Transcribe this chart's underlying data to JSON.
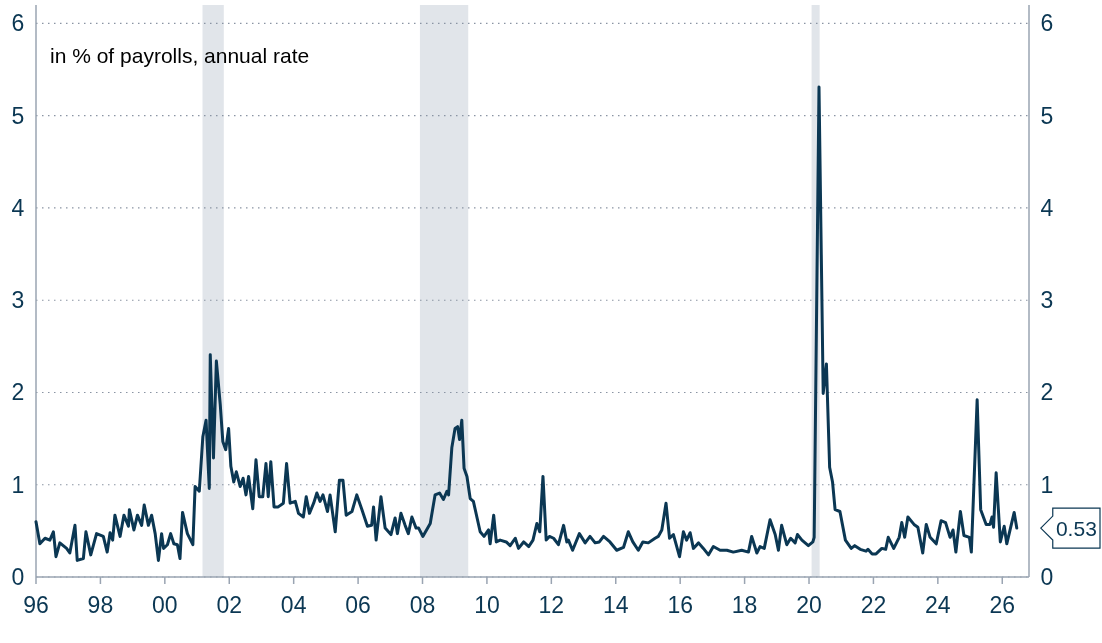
{
  "chart_data": {
    "type": "line",
    "annotations": [
      "in % of payrolls, annual rate",
      {
        "text": "0.53",
        "x": 2026.45,
        "y": 0.53
      }
    ],
    "x": [
      1996.0,
      1996.12,
      1996.28,
      1996.43,
      1996.54,
      1996.62,
      1996.74,
      1996.95,
      1997.05,
      1997.21,
      1997.28,
      1997.47,
      1997.55,
      1997.7,
      1997.88,
      1998.09,
      1998.21,
      1998.3,
      1998.38,
      1998.45,
      1998.61,
      1998.73,
      1998.87,
      1998.9,
      1999.04,
      1999.15,
      1999.28,
      1999.36,
      1999.49,
      1999.59,
      1999.7,
      1999.8,
      1999.9,
      1999.96,
      2000.08,
      2000.18,
      2000.28,
      2000.39,
      2000.47,
      2000.55,
      2000.7,
      2000.87,
      2000.94,
      2001.07,
      2001.18,
      2001.28,
      2001.38,
      2001.41,
      2001.51,
      2001.6,
      2001.72,
      2001.8,
      2001.89,
      2001.98,
      2002.05,
      2002.14,
      2002.22,
      2002.34,
      2002.43,
      2002.52,
      2002.6,
      2002.73,
      2002.83,
      2002.93,
      2003.04,
      2003.14,
      2003.21,
      2003.29,
      2003.39,
      2003.52,
      2003.68,
      2003.78,
      2003.89,
      2004.05,
      2004.15,
      2004.3,
      2004.39,
      2004.49,
      2004.62,
      2004.72,
      2004.82,
      2004.91,
      2005.05,
      2005.13,
      2005.29,
      2005.42,
      2005.53,
      2005.63,
      2005.81,
      2005.96,
      2006.12,
      2006.29,
      2006.42,
      2006.48,
      2006.56,
      2006.71,
      2006.84,
      2007.02,
      2007.15,
      2007.22,
      2007.33,
      2007.46,
      2007.56,
      2007.67,
      2007.8,
      2007.88,
      2008.01,
      2008.24,
      2008.39,
      2008.53,
      2008.65,
      2008.76,
      2008.81,
      2008.91,
      2009.01,
      2009.09,
      2009.15,
      2009.22,
      2009.29,
      2009.38,
      2009.48,
      2009.58,
      2009.79,
      2009.91,
      2010.05,
      2010.1,
      2010.21,
      2010.29,
      2010.41,
      2010.6,
      2010.72,
      2010.88,
      2010.98,
      2011.14,
      2011.3,
      2011.43,
      2011.55,
      2011.64,
      2011.74,
      2011.84,
      2011.94,
      2012.07,
      2012.22,
      2012.38,
      2012.48,
      2012.53,
      2012.66,
      2012.87,
      2013.05,
      2013.2,
      2013.36,
      2013.49,
      2013.62,
      2013.82,
      2014.03,
      2014.24,
      2014.39,
      2014.53,
      2014.7,
      2014.84,
      2015.01,
      2015.22,
      2015.32,
      2015.43,
      2015.56,
      2015.67,
      2015.79,
      2015.98,
      2016.1,
      2016.2,
      2016.31,
      2016.41,
      2016.57,
      2016.72,
      2016.88,
      2017.03,
      2017.24,
      2017.45,
      2017.65,
      2017.91,
      2018.12,
      2018.22,
      2018.38,
      2018.48,
      2018.61,
      2018.79,
      2018.95,
      2019.05,
      2019.15,
      2019.31,
      2019.43,
      2019.57,
      2019.64,
      2019.78,
      2019.98,
      2020.12,
      2020.16,
      2020.31,
      2020.44,
      2020.54,
      2020.64,
      2020.73,
      2020.81,
      2020.96,
      2021.13,
      2021.31,
      2021.42,
      2021.59,
      2021.77,
      2021.83,
      2021.96,
      2022.08,
      2022.26,
      2022.38,
      2022.46,
      2022.63,
      2022.8,
      2022.88,
      2022.97,
      2023.07,
      2023.26,
      2023.38,
      2023.53,
      2023.64,
      2023.76,
      2023.95,
      2024.1,
      2024.24,
      2024.38,
      2024.47,
      2024.56,
      2024.7,
      2024.81,
      2024.98,
      2025.04,
      2025.22,
      2025.33,
      2025.5,
      2025.62,
      2025.68,
      2025.73,
      2025.81,
      2025.94,
      2026.06,
      2026.14,
      2026.37,
      2026.45
    ],
    "series": [
      {
        "color": "#0b3753",
        "values": [
          0.6,
          0.36,
          0.42,
          0.4,
          0.49,
          0.22,
          0.37,
          0.31,
          0.26,
          0.56,
          0.18,
          0.2,
          0.49,
          0.24,
          0.47,
          0.44,
          0.27,
          0.48,
          0.4,
          0.67,
          0.44,
          0.67,
          0.55,
          0.73,
          0.51,
          0.67,
          0.56,
          0.78,
          0.56,
          0.67,
          0.47,
          0.18,
          0.47,
          0.31,
          0.35,
          0.47,
          0.36,
          0.35,
          0.2,
          0.7,
          0.47,
          0.35,
          0.98,
          0.93,
          1.52,
          1.7,
          0.96,
          2.41,
          1.29,
          2.34,
          1.87,
          1.47,
          1.38,
          1.61,
          1.2,
          1.03,
          1.14,
          0.98,
          1.07,
          0.89,
          1.09,
          0.74,
          1.27,
          0.87,
          0.87,
          1.23,
          0.87,
          1.25,
          0.76,
          0.76,
          0.8,
          1.23,
          0.8,
          0.82,
          0.69,
          0.65,
          0.87,
          0.69,
          0.8,
          0.91,
          0.82,
          0.89,
          0.71,
          0.89,
          0.49,
          1.05,
          1.05,
          0.67,
          0.71,
          0.89,
          0.73,
          0.55,
          0.56,
          0.76,
          0.4,
          0.87,
          0.53,
          0.46,
          0.64,
          0.47,
          0.69,
          0.56,
          0.47,
          0.65,
          0.53,
          0.53,
          0.44,
          0.58,
          0.89,
          0.91,
          0.84,
          0.93,
          0.89,
          1.4,
          1.61,
          1.63,
          1.49,
          1.7,
          1.18,
          1.09,
          0.85,
          0.82,
          0.49,
          0.44,
          0.51,
          0.36,
          0.67,
          0.38,
          0.4,
          0.38,
          0.34,
          0.42,
          0.31,
          0.38,
          0.33,
          0.4,
          0.58,
          0.49,
          1.09,
          0.4,
          0.44,
          0.42,
          0.35,
          0.56,
          0.38,
          0.4,
          0.29,
          0.47,
          0.37,
          0.44,
          0.37,
          0.38,
          0.44,
          0.38,
          0.29,
          0.32,
          0.49,
          0.38,
          0.29,
          0.38,
          0.37,
          0.42,
          0.44,
          0.51,
          0.8,
          0.42,
          0.46,
          0.22,
          0.49,
          0.4,
          0.48,
          0.31,
          0.37,
          0.31,
          0.24,
          0.33,
          0.29,
          0.29,
          0.27,
          0.29,
          0.27,
          0.44,
          0.26,
          0.33,
          0.31,
          0.62,
          0.46,
          0.29,
          0.56,
          0.35,
          0.42,
          0.37,
          0.46,
          0.4,
          0.34,
          0.38,
          0.43,
          5.31,
          1.99,
          2.31,
          1.19,
          1.03,
          0.73,
          0.71,
          0.4,
          0.31,
          0.34,
          0.3,
          0.28,
          0.3,
          0.25,
          0.25,
          0.31,
          0.3,
          0.43,
          0.31,
          0.43,
          0.59,
          0.43,
          0.65,
          0.57,
          0.54,
          0.26,
          0.57,
          0.43,
          0.36,
          0.61,
          0.59,
          0.43,
          0.51,
          0.27,
          0.71,
          0.45,
          0.43,
          0.27,
          1.92,
          0.73,
          0.57,
          0.57,
          0.65,
          0.54,
          1.13,
          0.38,
          0.55,
          0.36,
          0.7,
          0.53
        ]
      }
    ],
    "xlim": [
      1996,
      2026.83
    ],
    "xticks": [
      {
        "value": 1996,
        "label": "96"
      },
      {
        "value": 1998,
        "label": "98"
      },
      {
        "value": 2000,
        "label": "00"
      },
      {
        "value": 2002,
        "label": "02"
      },
      {
        "value": 2004,
        "label": "04"
      },
      {
        "value": 2006,
        "label": "06"
      },
      {
        "value": 2008,
        "label": "08"
      },
      {
        "value": 2010,
        "label": "10"
      },
      {
        "value": 2012,
        "label": "12"
      },
      {
        "value": 2014,
        "label": "14"
      },
      {
        "value": 2016,
        "label": "16"
      },
      {
        "value": 2018,
        "label": "18"
      },
      {
        "value": 2020,
        "label": "20"
      },
      {
        "value": 2022,
        "label": "22"
      },
      {
        "value": 2024,
        "label": "24"
      },
      {
        "value": 2026,
        "label": "26"
      }
    ],
    "ylim": [
      0,
      6.2
    ],
    "yticks": [
      0,
      1,
      2,
      3,
      4,
      5,
      6
    ],
    "y2lim": [
      0,
      6.2
    ],
    "y2ticks": [
      0,
      1,
      2,
      3,
      4,
      5,
      6
    ],
    "bands": [
      {
        "axis": "x",
        "from": 2001.17,
        "to": 2001.83,
        "color": "#e1e5ea"
      },
      {
        "axis": "x",
        "from": 2007.92,
        "to": 2009.42,
        "color": "#e1e5ea"
      },
      {
        "axis": "x",
        "from": 2020.08,
        "to": 2020.33,
        "color": "#e1e5ea"
      }
    ],
    "grid": "y"
  }
}
